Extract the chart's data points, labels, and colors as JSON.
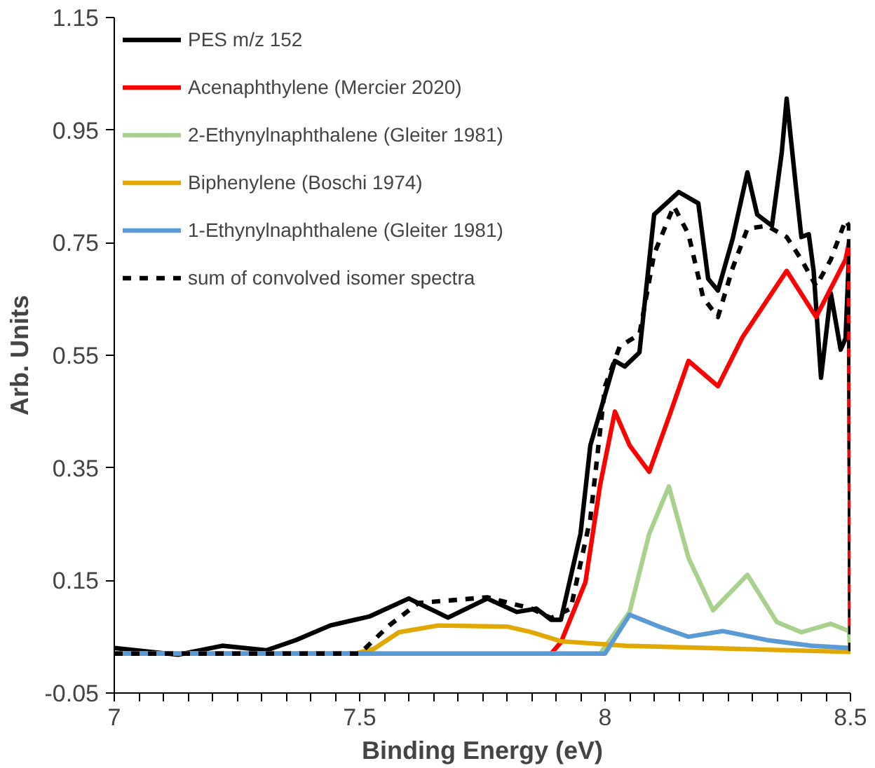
{
  "chart_data": {
    "type": "line",
    "xlabel": "Binding Energy (eV)",
    "ylabel": "Arb. Units",
    "xlim": [
      7,
      8.5
    ],
    "ylim": [
      -0.05,
      1.15
    ],
    "xticks": [
      7,
      {
        "value": 7.05,
        "label": null
      },
      {
        "value": 7.1,
        "label": null
      },
      {
        "value": 7.15,
        "label": null
      },
      {
        "value": 7.2,
        "label": null
      },
      {
        "value": 7.25,
        "label": null
      },
      {
        "value": 7.3,
        "label": null
      },
      {
        "value": 7.35,
        "label": null
      },
      {
        "value": 7.4,
        "label": null
      },
      {
        "value": 7.45,
        "label": null
      },
      7.5,
      {
        "value": 7.55,
        "label": null
      },
      {
        "value": 7.6,
        "label": null
      },
      {
        "value": 7.65,
        "label": null
      },
      {
        "value": 7.7,
        "label": null
      },
      {
        "value": 7.75,
        "label": null
      },
      {
        "value": 7.8,
        "label": null
      },
      {
        "value": 7.85,
        "label": null
      },
      {
        "value": 7.9,
        "label": null
      },
      {
        "value": 7.95,
        "label": null
      },
      8,
      {
        "value": 8.05,
        "label": null
      },
      {
        "value": 8.1,
        "label": null
      },
      {
        "value": 8.15,
        "label": null
      },
      {
        "value": 8.2,
        "label": null
      },
      {
        "value": 8.25,
        "label": null
      },
      {
        "value": 8.3,
        "label": null
      },
      {
        "value": 8.35,
        "label": null
      },
      {
        "value": 8.4,
        "label": null
      },
      {
        "value": 8.45,
        "label": null
      },
      8.5
    ],
    "yticks": [
      -0.05,
      0.15,
      0.35,
      0.55,
      0.75,
      0.95,
      1.15
    ],
    "grid": false,
    "legend": "top left",
    "marker": "none",
    "series": [
      {
        "name": "PES m/z 152",
        "color": "#000000",
        "line_style": "solid",
        "x": [
          7.0,
          7.13,
          7.22,
          7.31,
          7.37,
          7.44,
          7.52,
          7.6,
          7.68,
          7.76,
          7.82,
          7.86,
          7.89,
          7.91,
          7.95,
          7.97,
          8.02,
          8.04,
          8.07,
          8.1,
          8.15,
          8.19,
          8.21,
          8.23,
          8.26,
          8.29,
          8.31,
          8.34,
          8.36,
          8.37,
          8.39,
          8.4,
          8.415,
          8.425,
          8.44,
          8.46,
          8.48,
          8.49,
          8.497,
          8.5
        ],
        "values": [
          0.03,
          0.018,
          0.034,
          0.026,
          0.044,
          0.07,
          0.086,
          0.118,
          0.084,
          0.118,
          0.094,
          0.1,
          0.08,
          0.08,
          0.233,
          0.39,
          0.54,
          0.53,
          0.555,
          0.8,
          0.84,
          0.82,
          0.686,
          0.665,
          0.757,
          0.875,
          0.8,
          0.78,
          0.91,
          1.006,
          0.84,
          0.76,
          0.765,
          0.7,
          0.51,
          0.66,
          0.56,
          0.58,
          0.73,
          0.02
        ]
      },
      {
        "name": "Acenaphthylene (Mercier 2020)",
        "color": "#ff0000",
        "line_style": "solid",
        "x": [
          7.89,
          7.91,
          7.96,
          7.99,
          8.02,
          8.05,
          8.09,
          8.13,
          8.17,
          8.23,
          8.28,
          8.37,
          8.43,
          8.49,
          8.497,
          8.5
        ],
        "values": [
          0.02,
          0.04,
          0.147,
          0.32,
          0.45,
          0.39,
          0.343,
          0.44,
          0.54,
          0.495,
          0.582,
          0.7,
          0.618,
          0.72,
          0.75,
          0.02
        ]
      },
      {
        "name": "2-Ethynylnaphthalene (Gleiter 1981)",
        "color": "#a9d18e",
        "line_style": "solid",
        "x": [
          7.0,
          7.99,
          8.05,
          8.09,
          8.13,
          8.17,
          8.22,
          8.29,
          8.35,
          8.4,
          8.46,
          8.497,
          8.5
        ],
        "values": [
          0.02,
          0.02,
          0.094,
          0.233,
          0.317,
          0.19,
          0.097,
          0.16,
          0.076,
          0.058,
          0.073,
          0.06,
          0.02
        ]
      },
      {
        "name": "Biphenylene (Boschi 1974)",
        "color": "#e0a800",
        "line_style": "solid",
        "x": [
          7.0,
          7.49,
          7.53,
          7.58,
          7.66,
          7.8,
          7.85,
          7.91,
          8.04,
          8.5
        ],
        "values": [
          0.02,
          0.02,
          0.029,
          0.058,
          0.07,
          0.068,
          0.058,
          0.042,
          0.034,
          0.023
        ]
      },
      {
        "name": "1-Ethynylnaphthalene (Gleiter 1981)",
        "color": "#5b9bd5",
        "line_style": "solid",
        "x": [
          7.0,
          8.0,
          8.05,
          8.11,
          8.17,
          8.24,
          8.33,
          8.42,
          8.5
        ],
        "values": [
          0.02,
          0.02,
          0.089,
          0.068,
          0.05,
          0.06,
          0.044,
          0.034,
          0.03
        ]
      },
      {
        "name": "sum of convolved isomer spectra",
        "color": "#000000",
        "line_style": "dashed",
        "x": [
          7.0,
          7.5,
          7.56,
          7.62,
          7.76,
          7.85,
          7.89,
          7.93,
          7.97,
          8.0,
          8.03,
          8.07,
          8.1,
          8.14,
          8.17,
          8.2,
          8.23,
          8.26,
          8.29,
          8.33,
          8.37,
          8.4,
          8.43,
          8.46,
          8.49,
          8.497,
          8.5
        ],
        "values": [
          0.02,
          0.02,
          0.07,
          0.11,
          0.12,
          0.1,
          0.083,
          0.1,
          0.26,
          0.495,
          0.566,
          0.587,
          0.73,
          0.815,
          0.765,
          0.652,
          0.618,
          0.705,
          0.775,
          0.78,
          0.76,
          0.72,
          0.673,
          0.72,
          0.79,
          0.78,
          0.02
        ]
      }
    ]
  }
}
